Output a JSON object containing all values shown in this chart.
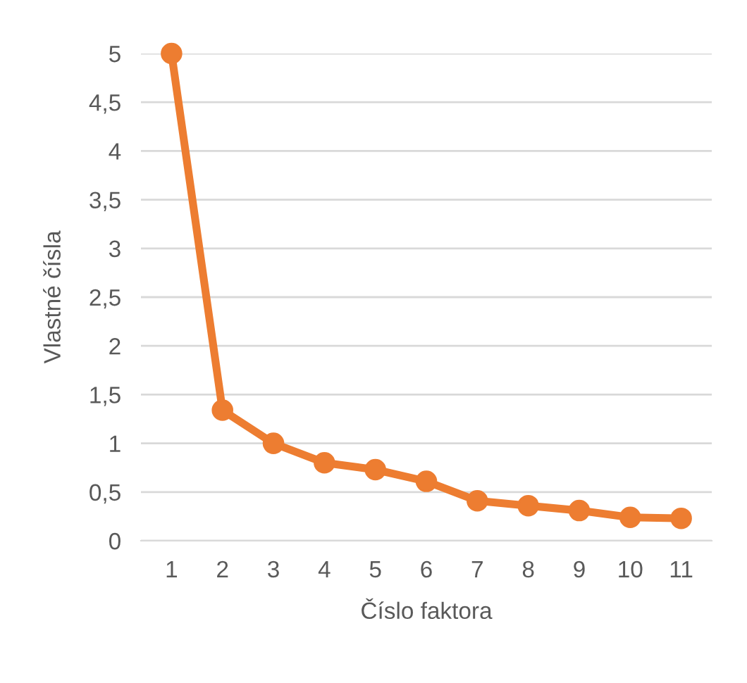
{
  "chart_data": {
    "type": "line",
    "xlabel": "Číslo faktora",
    "ylabel": "Vlastné čísla",
    "categories": [
      "1",
      "2",
      "3",
      "4",
      "5",
      "6",
      "7",
      "8",
      "9",
      "10",
      "11"
    ],
    "series": [
      {
        "color": "#ed7d31",
        "values": [
          5.0,
          1.34,
          1.0,
          0.8,
          0.73,
          0.61,
          0.41,
          0.36,
          0.31,
          0.24,
          0.23
        ]
      }
    ],
    "ylim": [
      0,
      5
    ],
    "yticks": [
      0,
      {
        "value": 0.5,
        "label": "0,5"
      },
      1,
      {
        "value": 1.5,
        "label": "1,5"
      },
      2,
      {
        "value": 2.5,
        "label": "2,5"
      },
      3,
      {
        "value": 3.5,
        "label": "3,5"
      },
      4,
      {
        "value": 4.5,
        "label": "4,5"
      },
      5
    ],
    "grid": "y",
    "marker": "circle",
    "line_style": "solid",
    "legend": false
  }
}
